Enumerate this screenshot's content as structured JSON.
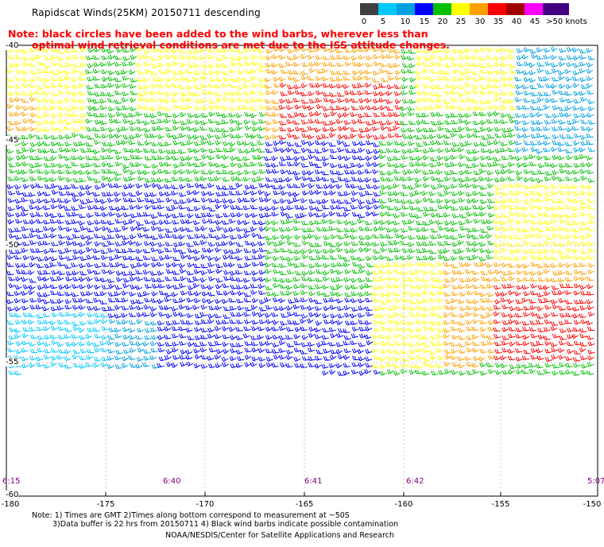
{
  "header": {
    "title": "Rapidscat Winds(25KM) 20150711 descending",
    "note_line1": "Note: black circles have been added to the wind barbs, wherever less than",
    "note_line2": "optimal wind retrieval conditions are met due to the ISS attitude changes."
  },
  "legend": {
    "labels": [
      "0",
      "5",
      "10",
      "15",
      "20",
      "25",
      "30",
      "35",
      "40",
      "45",
      ">50 knots"
    ],
    "colors": [
      "#404040",
      "#00c8ff",
      "#00a0e0",
      "#0000ff",
      "#00c000",
      "#ffff00",
      "#ffa000",
      "#ff0000",
      "#a00000",
      "#ff00ff",
      "#400080"
    ]
  },
  "map": {
    "lon_labels": [
      "-180",
      "-175",
      "-170",
      "-165",
      "-160",
      "-155",
      "-150"
    ],
    "lat_labels": [
      "-40",
      "-45",
      "-50",
      "-55",
      "-60"
    ],
    "time_labels": [
      "6:15",
      "6:40",
      "6:41",
      "6:42",
      "5:07"
    ],
    "grid_color": "#bdbdbd",
    "frame_color": "#000000"
  },
  "footer": {
    "line1": "Note: 1) Times are GMT 2)Times along bottom correspond to measurement at ~50S",
    "line2": "3)Data buffer is 22 hrs from 20150711 4) Black wind barbs indicate possible contamination",
    "line3": "NOAA/NESDIS/Center for Satellite Applications and Research"
  }
}
